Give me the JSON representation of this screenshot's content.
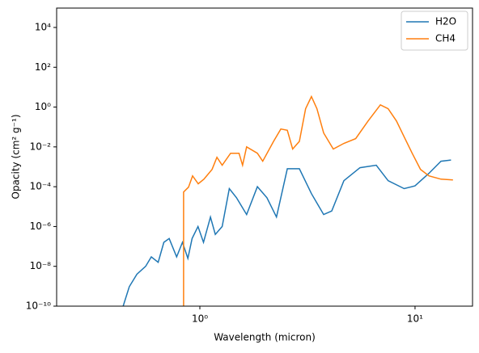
{
  "chart_data": {
    "type": "line",
    "x_label": "Wavelength (micron)",
    "y_label": "Opacity (cm² g⁻¹)",
    "xscale": "log",
    "yscale": "log",
    "xlim": [
      0.216,
      18.5
    ],
    "ylim": [
      1e-10,
      94000
    ],
    "xticks": [
      {
        "value": 1,
        "label": "10⁰"
      },
      {
        "value": 10,
        "label": "10¹"
      }
    ],
    "yticks": [
      {
        "value": 1e-10,
        "label": "10⁻¹⁰"
      },
      {
        "value": 1e-08,
        "label": "10⁻⁸"
      },
      {
        "value": 1e-06,
        "label": "10⁻⁶"
      },
      {
        "value": 0.0001,
        "label": "10⁻⁴"
      },
      {
        "value": 0.01,
        "label": "10⁻²"
      },
      {
        "value": 1,
        "label": "10⁰"
      },
      {
        "value": 100,
        "label": "10²"
      },
      {
        "value": 10000,
        "label": "10⁴"
      }
    ],
    "legend": "upper right",
    "series": [
      {
        "name": "H2O",
        "color": "#1f77b4",
        "x": [
          0.44,
          0.47,
          0.51,
          0.56,
          0.595,
          0.64,
          0.68,
          0.72,
          0.78,
          0.83,
          0.88,
          0.92,
          0.98,
          1.04,
          1.12,
          1.18,
          1.27,
          1.37,
          1.48,
          1.65,
          1.85,
          2.05,
          2.27,
          2.55,
          2.9,
          3.3,
          3.76,
          4.1,
          4.67,
          5.55,
          6.6,
          7.5,
          8.9,
          10,
          11.6,
          13.2,
          14.7
        ],
        "values": [
          1e-10,
          9.5e-10,
          4e-09,
          1e-08,
          3e-08,
          1.6e-08,
          1.6e-07,
          2.5e-07,
          3e-08,
          1.6e-07,
          2.5e-08,
          2.5e-07,
          1e-06,
          1.6e-07,
          3e-06,
          4e-07,
          1e-06,
          8e-05,
          2.8e-05,
          4e-06,
          0.0001,
          2.8e-05,
          3e-06,
          0.0008,
          0.0008,
          4.5e-05,
          4e-06,
          6e-06,
          0.0002,
          0.0009,
          0.0012,
          0.0002,
          8e-05,
          0.00011,
          0.00047,
          0.0019,
          0.0022
        ]
      },
      {
        "name": "CH4",
        "color": "#ff7f0e",
        "x": [
          0.84,
          0.84,
          0.886,
          0.925,
          0.983,
          1.044,
          1.14,
          1.2,
          1.27,
          1.39,
          1.52,
          1.58,
          1.65,
          1.85,
          1.96,
          2.2,
          2.38,
          2.55,
          2.7,
          2.9,
          3.1,
          3.3,
          3.5,
          3.76,
          4.17,
          4.67,
          5.3,
          6.05,
          6.9,
          7.5,
          8.2,
          8.9,
          9.7,
          10.6,
          11.6,
          13.2,
          15
        ],
        "values": [
          1e-10,
          5.4e-05,
          9.5e-05,
          0.00035,
          0.00014,
          0.00024,
          0.00074,
          0.003,
          0.0012,
          0.0048,
          0.0048,
          0.0012,
          0.01,
          0.0048,
          0.0019,
          0.019,
          0.079,
          0.068,
          0.0078,
          0.019,
          0.83,
          3.4,
          0.83,
          0.05,
          0.0078,
          0.015,
          0.026,
          0.2,
          1.3,
          0.83,
          0.2,
          0.032,
          0.0048,
          0.00074,
          0.00035,
          0.00024,
          0.00022
        ]
      }
    ]
  }
}
